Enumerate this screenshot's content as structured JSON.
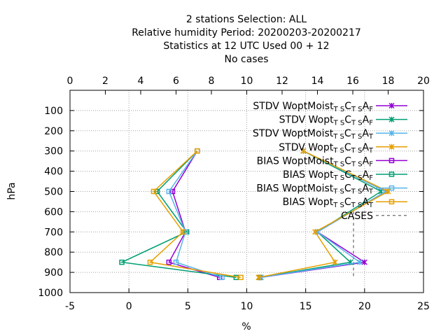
{
  "chart_data": {
    "type": "line",
    "title_lines": [
      "2 stations Selection: ALL",
      "Relative humidity  Period: 20200203-20200217",
      "Statistics at 12 UTC  Used  00 + 12",
      "No cases"
    ],
    "xlabel": "%",
    "ylabel": "hPa",
    "xlim": [
      -5,
      25
    ],
    "x2lim": [
      0,
      20
    ],
    "ylim": [
      1000,
      0
    ],
    "xticks": [
      "-5",
      "0",
      "5",
      "10",
      "15",
      "20",
      "25"
    ],
    "x2ticks": [
      "0",
      "2",
      "4",
      "6",
      "8",
      "10",
      "12",
      "14",
      "16",
      "18",
      "20"
    ],
    "yticks": [
      "100",
      "200",
      "300",
      "400",
      "500",
      "600",
      "700",
      "800",
      "900",
      "1000"
    ],
    "grid": true,
    "legend_position": "top-right",
    "levels": [
      300,
      500,
      700,
      850,
      925
    ],
    "series": [
      {
        "name": "STDV WoptMoist",
        "sub1": "T S",
        "mid1": "C",
        "sub2": "T S",
        "mid2": "A",
        "sub3": "F",
        "color": "#9400d3",
        "marker": "x",
        "values": [
          14.8,
          21.8,
          16.0,
          20.0,
          11.2
        ]
      },
      {
        "name": "STDV Wopt",
        "sub1": "T S",
        "mid1": "C",
        "sub2": "T S",
        "mid2": "A",
        "sub3": "F",
        "color": "#009e73",
        "marker": "x",
        "values": [
          14.8,
          21.4,
          16.0,
          18.8,
          11.1
        ]
      },
      {
        "name": "STDV WoptMoist",
        "sub1": "T S",
        "mid1": "C",
        "sub2": "T S",
        "mid2": "A",
        "sub3": "T",
        "color": "#56b4e9",
        "marker": "x",
        "values": [
          14.8,
          21.8,
          16.0,
          19.6,
          11.2
        ]
      },
      {
        "name": "STDV Wopt",
        "sub1": "T S",
        "mid1": "C",
        "sub2": "T S",
        "mid2": "A",
        "sub3": "T",
        "color": "#e69f00",
        "marker": "x",
        "values": [
          14.8,
          22.0,
          15.8,
          17.5,
          11.0
        ]
      },
      {
        "name": "BIAS WoptMoist",
        "sub1": "T S",
        "mid1": "C",
        "sub2": "T S",
        "mid2": "A",
        "sub3": "F",
        "color": "#9400d3",
        "marker": "square",
        "values": [
          5.8,
          3.7,
          4.8,
          3.4,
          7.7
        ]
      },
      {
        "name": "BIAS Wopt",
        "sub1": "T S",
        "mid1": "C",
        "sub2": "T S",
        "mid2": "A",
        "sub3": "F",
        "color": "#009e73",
        "marker": "square",
        "values": [
          5.8,
          2.4,
          4.9,
          -0.6,
          9.1
        ]
      },
      {
        "name": "BIAS WoptMoist",
        "sub1": "T S",
        "mid1": "C",
        "sub2": "T S",
        "mid2": "A",
        "sub3": "T",
        "color": "#56b4e9",
        "marker": "square",
        "values": [
          5.8,
          3.4,
          4.8,
          4.0,
          7.9
        ]
      },
      {
        "name": "BIAS Wopt",
        "sub1": "T S",
        "mid1": "C",
        "sub2": "T S",
        "mid2": "A",
        "sub3": "T",
        "color": "#e69f00",
        "marker": "square",
        "values": [
          5.8,
          2.1,
          4.6,
          1.8,
          9.5
        ]
      }
    ],
    "cases": {
      "name": "CASES",
      "color": "#808080"
    }
  }
}
